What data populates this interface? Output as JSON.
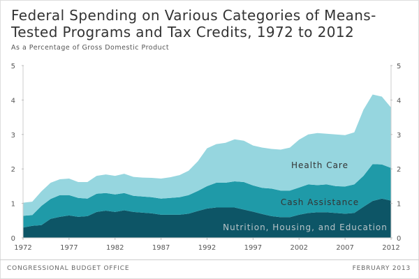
{
  "title": "Federal Spending on Various Categories of Means-Tested Programs and Tax Credits, 1972 to 2012",
  "subtitle": "As a Percentage of Gross Domestic Product",
  "footer": {
    "source": "CONGRESSIONAL BUDGET OFFICE",
    "date": "FEBRUARY 2013"
  },
  "colors": {
    "nutrition": "#0d5566",
    "cash": "#1f9aa8",
    "health": "#96d6df"
  },
  "chart_data": {
    "type": "area",
    "stacked": true,
    "title": "",
    "xlabel": "",
    "ylabel": "",
    "xlim": [
      1972,
      2012
    ],
    "ylim": [
      0,
      5
    ],
    "x_ticks": [
      1972,
      1977,
      1982,
      1987,
      1992,
      1997,
      2002,
      2007,
      2012
    ],
    "y_ticks": [
      0,
      1,
      2,
      3,
      4,
      5
    ],
    "grid": false,
    "legend": "inline labels",
    "x": [
      1972,
      1973,
      1974,
      1975,
      1976,
      1977,
      1978,
      1979,
      1980,
      1981,
      1982,
      1983,
      1984,
      1985,
      1986,
      1987,
      1988,
      1989,
      1990,
      1991,
      1992,
      1993,
      1994,
      1995,
      1996,
      1997,
      1998,
      1999,
      2000,
      2001,
      2002,
      2003,
      2004,
      2005,
      2006,
      2007,
      2008,
      2009,
      2010,
      2011,
      2012
    ],
    "series": [
      {
        "name": "Nutrition, Housing, and Education",
        "values": [
          0.3,
          0.35,
          0.37,
          0.55,
          0.61,
          0.65,
          0.61,
          0.63,
          0.75,
          0.79,
          0.75,
          0.8,
          0.75,
          0.73,
          0.71,
          0.67,
          0.67,
          0.67,
          0.7,
          0.78,
          0.85,
          0.88,
          0.88,
          0.88,
          0.82,
          0.76,
          0.69,
          0.63,
          0.6,
          0.6,
          0.67,
          0.72,
          0.74,
          0.74,
          0.72,
          0.7,
          0.72,
          0.9,
          1.07,
          1.14,
          1.08
        ]
      },
      {
        "name": "Cash Assistance",
        "values": [
          0.34,
          0.31,
          0.56,
          0.58,
          0.63,
          0.59,
          0.55,
          0.51,
          0.53,
          0.51,
          0.51,
          0.5,
          0.47,
          0.47,
          0.47,
          0.47,
          0.49,
          0.51,
          0.54,
          0.58,
          0.65,
          0.72,
          0.72,
          0.76,
          0.8,
          0.76,
          0.76,
          0.8,
          0.77,
          0.77,
          0.79,
          0.83,
          0.79,
          0.81,
          0.78,
          0.79,
          0.83,
          0.9,
          1.07,
          0.99,
          0.95
        ]
      },
      {
        "name": "Health Care",
        "values": [
          0.38,
          0.39,
          0.42,
          0.47,
          0.46,
          0.48,
          0.46,
          0.48,
          0.52,
          0.54,
          0.54,
          0.56,
          0.55,
          0.55,
          0.56,
          0.58,
          0.6,
          0.64,
          0.71,
          0.86,
          1.1,
          1.12,
          1.16,
          1.22,
          1.2,
          1.16,
          1.17,
          1.15,
          1.19,
          1.25,
          1.39,
          1.45,
          1.51,
          1.47,
          1.5,
          1.49,
          1.51,
          1.92,
          2.02,
          1.97,
          1.75
        ]
      }
    ]
  }
}
